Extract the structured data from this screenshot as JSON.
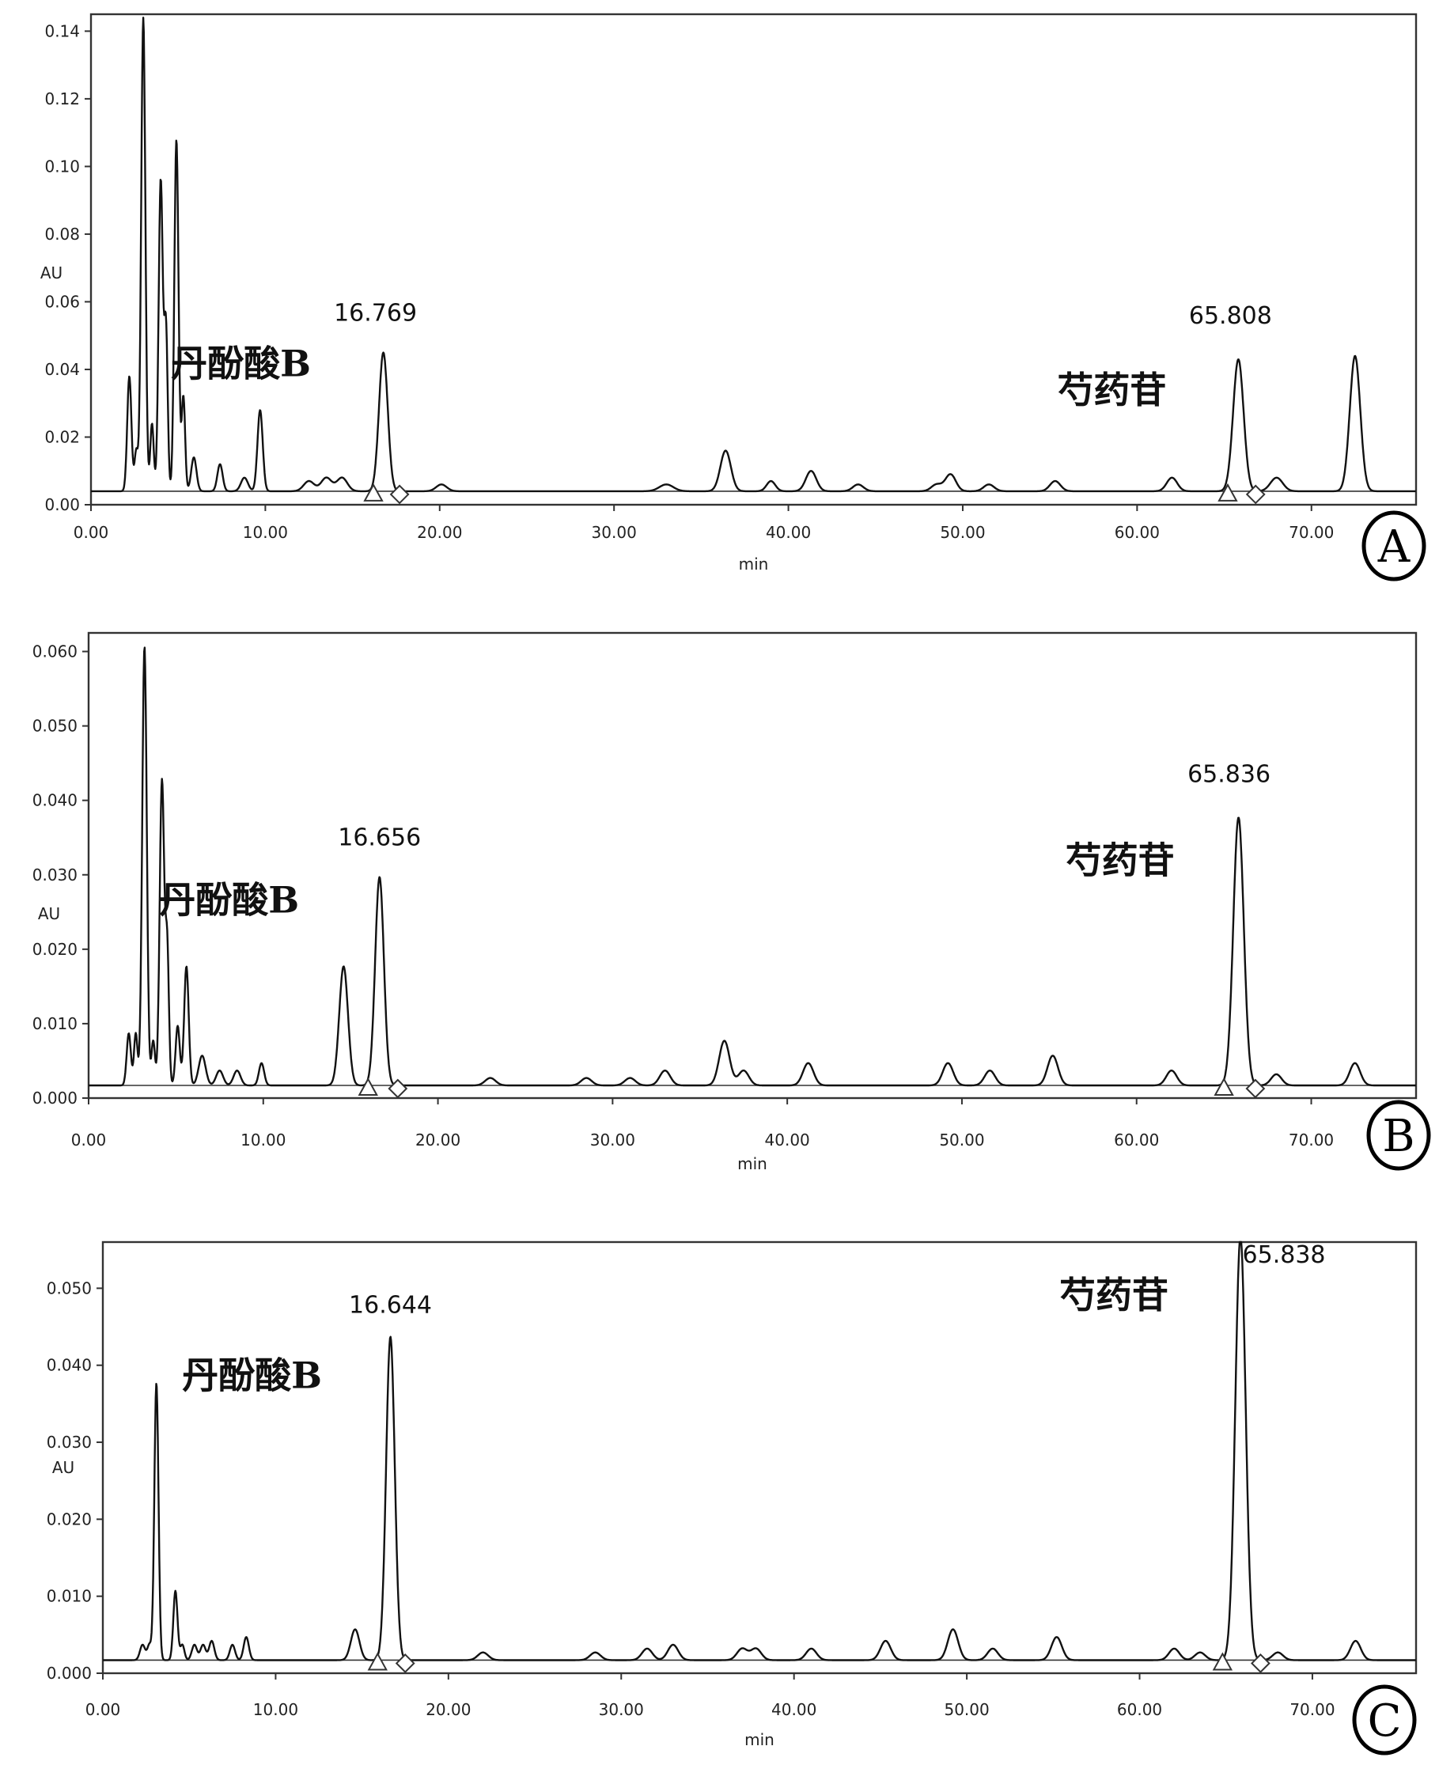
{
  "chart_data": [
    {
      "type": "line",
      "panel": "A",
      "xlabel": "min",
      "ylabel": "AU",
      "xlim": [
        0,
        76
      ],
      "ylim": [
        0,
        0.145
      ],
      "xticks": [
        "0.00",
        "10.00",
        "20.00",
        "30.00",
        "40.00",
        "50.00",
        "60.00",
        "70.00"
      ],
      "yticks": [
        "0.00",
        "0.02",
        "0.04",
        "0.06",
        "0.08",
        "0.10",
        "0.12",
        "0.14"
      ],
      "baseline": 0.004,
      "integration_markers": [
        16.2,
        17.7,
        65.2,
        66.8
      ],
      "peaks": [
        {
          "x": 2.2,
          "y": 0.034,
          "w": 0.12
        },
        {
          "x": 2.6,
          "y": 0.012,
          "w": 0.1
        },
        {
          "x": 3.0,
          "y": 0.14,
          "w": 0.12
        },
        {
          "x": 3.5,
          "y": 0.02,
          "w": 0.1
        },
        {
          "x": 4.0,
          "y": 0.092,
          "w": 0.12
        },
        {
          "x": 4.3,
          "y": 0.048,
          "w": 0.1
        },
        {
          "x": 4.9,
          "y": 0.104,
          "w": 0.12
        },
        {
          "x": 5.3,
          "y": 0.028,
          "w": 0.1
        },
        {
          "x": 5.9,
          "y": 0.01,
          "w": 0.15
        },
        {
          "x": 7.4,
          "y": 0.008,
          "w": 0.15
        },
        {
          "x": 8.8,
          "y": 0.004,
          "w": 0.2
        },
        {
          "x": 9.7,
          "y": 0.024,
          "w": 0.15
        },
        {
          "x": 12.5,
          "y": 0.003,
          "w": 0.3
        },
        {
          "x": 13.5,
          "y": 0.004,
          "w": 0.3
        },
        {
          "x": 14.4,
          "y": 0.004,
          "w": 0.3
        },
        {
          "x": 16.769,
          "y": 0.041,
          "w": 0.25
        },
        {
          "x": 20.1,
          "y": 0.002,
          "w": 0.3
        },
        {
          "x": 33.0,
          "y": 0.002,
          "w": 0.4
        },
        {
          "x": 36.4,
          "y": 0.012,
          "w": 0.3
        },
        {
          "x": 39.0,
          "y": 0.003,
          "w": 0.25
        },
        {
          "x": 41.3,
          "y": 0.006,
          "w": 0.3
        },
        {
          "x": 44.0,
          "y": 0.002,
          "w": 0.3
        },
        {
          "x": 48.5,
          "y": 0.002,
          "w": 0.3
        },
        {
          "x": 49.3,
          "y": 0.005,
          "w": 0.3
        },
        {
          "x": 51.5,
          "y": 0.002,
          "w": 0.3
        },
        {
          "x": 55.3,
          "y": 0.003,
          "w": 0.3
        },
        {
          "x": 62.0,
          "y": 0.004,
          "w": 0.3
        },
        {
          "x": 65.808,
          "y": 0.039,
          "w": 0.3
        },
        {
          "x": 68.0,
          "y": 0.004,
          "w": 0.35
        },
        {
          "x": 72.5,
          "y": 0.04,
          "w": 0.3
        }
      ],
      "annotations": [
        {
          "text": "16.769",
          "x": 16.769,
          "kind": "rt"
        },
        {
          "text": "丹酚酸B",
          "x": 16.769,
          "kind": "compound"
        },
        {
          "text": "65.808",
          "x": 65.808,
          "kind": "rt"
        },
        {
          "text": "芍药苷",
          "x": 65.808,
          "kind": "compound"
        }
      ]
    },
    {
      "type": "line",
      "panel": "B",
      "xlabel": "min",
      "ylabel": "AU",
      "xlim": [
        0,
        76
      ],
      "ylim": [
        0,
        0.0625
      ],
      "xticks": [
        "0.00",
        "10.00",
        "20.00",
        "30.00",
        "40.00",
        "50.00",
        "60.00",
        "70.00"
      ],
      "yticks": [
        "0.000",
        "0.010",
        "0.020",
        "0.030",
        "0.040",
        "0.050",
        "0.060"
      ],
      "baseline": 0.0017,
      "integration_markers": [
        16.0,
        17.7,
        65.0,
        66.8
      ],
      "peaks": [
        {
          "x": 2.3,
          "y": 0.007,
          "w": 0.12
        },
        {
          "x": 2.7,
          "y": 0.007,
          "w": 0.1
        },
        {
          "x": 3.2,
          "y": 0.059,
          "w": 0.13
        },
        {
          "x": 3.7,
          "y": 0.006,
          "w": 0.1
        },
        {
          "x": 4.2,
          "y": 0.041,
          "w": 0.13
        },
        {
          "x": 4.5,
          "y": 0.018,
          "w": 0.1
        },
        {
          "x": 5.1,
          "y": 0.008,
          "w": 0.12
        },
        {
          "x": 5.6,
          "y": 0.016,
          "w": 0.13
        },
        {
          "x": 6.5,
          "y": 0.004,
          "w": 0.2
        },
        {
          "x": 7.5,
          "y": 0.002,
          "w": 0.2
        },
        {
          "x": 8.5,
          "y": 0.002,
          "w": 0.2
        },
        {
          "x": 9.9,
          "y": 0.003,
          "w": 0.15
        },
        {
          "x": 14.6,
          "y": 0.016,
          "w": 0.25
        },
        {
          "x": 16.656,
          "y": 0.028,
          "w": 0.25
        },
        {
          "x": 23.0,
          "y": 0.001,
          "w": 0.3
        },
        {
          "x": 28.5,
          "y": 0.001,
          "w": 0.3
        },
        {
          "x": 31.0,
          "y": 0.001,
          "w": 0.3
        },
        {
          "x": 33.0,
          "y": 0.002,
          "w": 0.3
        },
        {
          "x": 36.4,
          "y": 0.006,
          "w": 0.3
        },
        {
          "x": 37.5,
          "y": 0.002,
          "w": 0.3
        },
        {
          "x": 41.2,
          "y": 0.003,
          "w": 0.3
        },
        {
          "x": 49.2,
          "y": 0.003,
          "w": 0.3
        },
        {
          "x": 51.6,
          "y": 0.002,
          "w": 0.3
        },
        {
          "x": 55.2,
          "y": 0.004,
          "w": 0.3
        },
        {
          "x": 62.0,
          "y": 0.002,
          "w": 0.3
        },
        {
          "x": 65.836,
          "y": 0.036,
          "w": 0.3
        },
        {
          "x": 68.0,
          "y": 0.0015,
          "w": 0.3
        },
        {
          "x": 72.5,
          "y": 0.003,
          "w": 0.3
        }
      ],
      "annotations": [
        {
          "text": "16.656",
          "x": 16.656,
          "kind": "rt"
        },
        {
          "text": "丹酚酸B",
          "x": 16.656,
          "kind": "compound"
        },
        {
          "text": "65.836",
          "x": 65.836,
          "kind": "rt"
        },
        {
          "text": "芍药苷",
          "x": 65.836,
          "kind": "compound"
        }
      ]
    },
    {
      "type": "line",
      "panel": "C",
      "xlabel": "min",
      "ylabel": "AU",
      "xlim": [
        0,
        76
      ],
      "ylim": [
        0,
        0.056
      ],
      "xticks": [
        "0.00",
        "10.00",
        "20.00",
        "30.00",
        "40.00",
        "50.00",
        "60.00",
        "70.00"
      ],
      "yticks": [
        "0.000",
        "0.010",
        "0.020",
        "0.030",
        "0.040",
        "0.050"
      ],
      "baseline": 0.0017,
      "integration_markers": [
        15.9,
        17.5,
        64.8,
        67.0
      ],
      "peaks": [
        {
          "x": 2.3,
          "y": 0.002,
          "w": 0.15
        },
        {
          "x": 2.7,
          "y": 0.002,
          "w": 0.12
        },
        {
          "x": 3.1,
          "y": 0.036,
          "w": 0.12
        },
        {
          "x": 4.2,
          "y": 0.009,
          "w": 0.12
        },
        {
          "x": 4.6,
          "y": 0.002,
          "w": 0.12
        },
        {
          "x": 5.3,
          "y": 0.002,
          "w": 0.15
        },
        {
          "x": 5.8,
          "y": 0.002,
          "w": 0.15
        },
        {
          "x": 6.3,
          "y": 0.0025,
          "w": 0.15
        },
        {
          "x": 7.5,
          "y": 0.002,
          "w": 0.15
        },
        {
          "x": 8.3,
          "y": 0.003,
          "w": 0.15
        },
        {
          "x": 14.6,
          "y": 0.004,
          "w": 0.25
        },
        {
          "x": 16.644,
          "y": 0.042,
          "w": 0.25
        },
        {
          "x": 22.0,
          "y": 0.001,
          "w": 0.3
        },
        {
          "x": 28.5,
          "y": 0.001,
          "w": 0.3
        },
        {
          "x": 31.5,
          "y": 0.0015,
          "w": 0.3
        },
        {
          "x": 33.0,
          "y": 0.002,
          "w": 0.3
        },
        {
          "x": 37.0,
          "y": 0.0015,
          "w": 0.3
        },
        {
          "x": 37.8,
          "y": 0.0015,
          "w": 0.3
        },
        {
          "x": 41.0,
          "y": 0.0015,
          "w": 0.3
        },
        {
          "x": 45.3,
          "y": 0.0025,
          "w": 0.3
        },
        {
          "x": 49.2,
          "y": 0.004,
          "w": 0.3
        },
        {
          "x": 51.5,
          "y": 0.0015,
          "w": 0.3
        },
        {
          "x": 55.2,
          "y": 0.003,
          "w": 0.3
        },
        {
          "x": 62.0,
          "y": 0.0015,
          "w": 0.3
        },
        {
          "x": 63.5,
          "y": 0.001,
          "w": 0.3
        },
        {
          "x": 65.838,
          "y": 0.055,
          "w": 0.3
        },
        {
          "x": 68.0,
          "y": 0.001,
          "w": 0.3
        },
        {
          "x": 72.5,
          "y": 0.0025,
          "w": 0.3
        }
      ],
      "annotations": [
        {
          "text": "16.644",
          "x": 16.644,
          "kind": "rt"
        },
        {
          "text": "丹酚酸B",
          "x": 16.644,
          "kind": "compound"
        },
        {
          "text": "65.838",
          "x": 65.838,
          "kind": "rt"
        },
        {
          "text": "芍药苷",
          "x": 65.838,
          "kind": "compound"
        }
      ]
    }
  ]
}
